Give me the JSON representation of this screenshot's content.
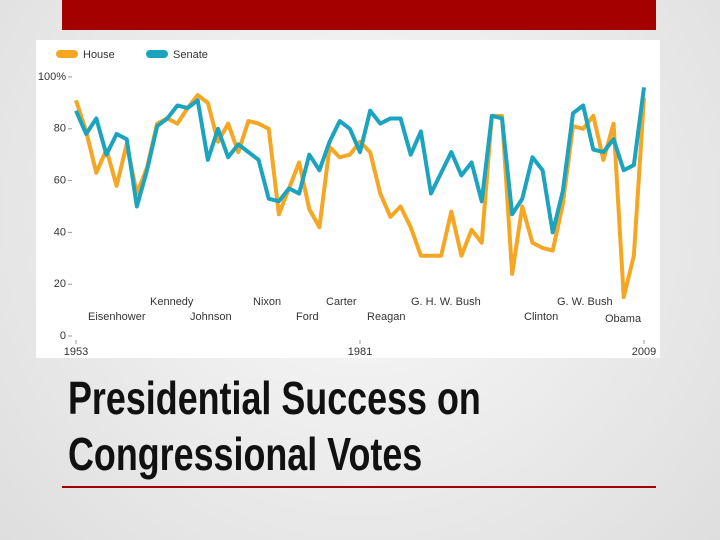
{
  "slide": {
    "title_lines": [
      "Presidential Success on",
      "Congressional Votes"
    ]
  },
  "chart_data": {
    "type": "line",
    "x": [
      1953,
      1954,
      1955,
      1956,
      1957,
      1958,
      1959,
      1960,
      1961,
      1962,
      1963,
      1964,
      1965,
      1966,
      1967,
      1968,
      1969,
      1970,
      1971,
      1972,
      1973,
      1974,
      1975,
      1976,
      1977,
      1978,
      1979,
      1980,
      1981,
      1982,
      1983,
      1984,
      1985,
      1986,
      1987,
      1988,
      1989,
      1990,
      1991,
      1992,
      1993,
      1994,
      1995,
      1996,
      1997,
      1998,
      1999,
      2000,
      2001,
      2002,
      2003,
      2004,
      2005,
      2006,
      2007,
      2008,
      2009
    ],
    "series": [
      {
        "name": "House",
        "color": "#f5a623",
        "values": [
          91,
          79,
          63,
          72,
          58,
          74,
          55,
          65,
          82,
          84,
          82,
          88,
          93,
          90,
          75,
          82,
          71,
          83,
          82,
          80,
          47,
          57,
          67,
          49,
          42,
          73,
          69,
          70,
          75,
          71,
          55,
          46,
          50,
          42,
          31,
          31,
          31,
          48,
          31,
          41,
          36,
          85,
          85,
          24,
          50,
          36,
          34,
          33,
          51,
          81,
          80,
          85,
          68,
          82,
          15,
          31,
          92
        ]
      },
      {
        "name": "Senate",
        "color": "#1ca3be",
        "values": [
          87,
          78,
          84,
          70,
          78,
          76,
          50,
          64,
          81,
          84,
          89,
          88,
          91,
          68,
          80,
          69,
          74,
          71,
          68,
          53,
          52,
          57,
          55,
          70,
          64,
          75,
          83,
          80,
          71,
          87,
          82,
          84,
          84,
          70,
          79,
          55,
          63,
          71,
          62,
          67,
          52,
          85,
          84,
          47,
          53,
          69,
          64,
          40,
          56,
          86,
          89,
          72,
          71,
          76,
          64,
          66,
          96
        ]
      }
    ],
    "xlim": [
      1953,
      2009
    ],
    "xticks": [
      1953,
      1981,
      2009
    ],
    "ylim": [
      0,
      100
    ],
    "yticks": [
      0,
      20,
      40,
      60,
      {
        "value": 100,
        "label": "100%"
      },
      80
    ],
    "annotations": [
      "Eisenhower",
      "Kennedy",
      "Johnson",
      "Nixon",
      "Ford",
      "Carter",
      "Reagan",
      "G. H. W. Bush",
      "Clinton",
      "G. W. Bush",
      "Obama"
    ]
  }
}
